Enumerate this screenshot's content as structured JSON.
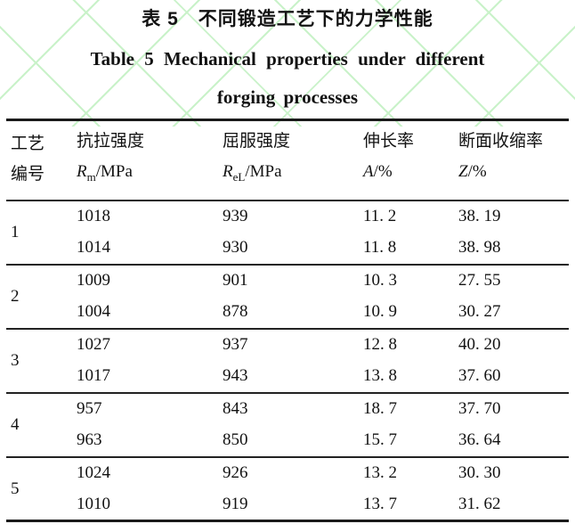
{
  "title": {
    "zh": "表 5　不同锻造工艺下的力学性能",
    "en_line1": "Table 5 Mechanical properties under different",
    "en_line2": "forging processes"
  },
  "table": {
    "columns": [
      {
        "zh1": "工艺",
        "zh2": "编号"
      },
      {
        "zh": "抗拉强度",
        "sym": "R",
        "sub": "m",
        "unit": "/MPa"
      },
      {
        "zh": "屈服强度",
        "sym": "R",
        "sub": "eL",
        "unit": "/MPa"
      },
      {
        "zh": "伸长率",
        "sym": "A",
        "sub": "",
        "unit": "/%"
      },
      {
        "zh": "断面收缩率",
        "sym": "Z",
        "sub": "",
        "unit": "/%"
      }
    ],
    "groups": [
      {
        "id": "1",
        "rows": [
          [
            "1018",
            "939",
            "11. 2",
            "38. 19"
          ],
          [
            "1014",
            "930",
            "11. 8",
            "38. 98"
          ]
        ]
      },
      {
        "id": "2",
        "rows": [
          [
            "1009",
            "901",
            "10. 3",
            "27. 55"
          ],
          [
            "1004",
            "878",
            "10. 9",
            "30. 27"
          ]
        ]
      },
      {
        "id": "3",
        "rows": [
          [
            "1027",
            "937",
            "12. 8",
            "40. 20"
          ],
          [
            "1017",
            "943",
            "13. 8",
            "37. 60"
          ]
        ]
      },
      {
        "id": "4",
        "rows": [
          [
            "957",
            "843",
            "18. 7",
            "37. 70"
          ],
          [
            "963",
            "850",
            "15. 7",
            "36. 64"
          ]
        ]
      },
      {
        "id": "5",
        "rows": [
          [
            "1024",
            "926",
            "13. 2",
            "30. 30"
          ],
          [
            "1010",
            "919",
            "13. 7",
            "31. 62"
          ]
        ]
      }
    ]
  },
  "chart_data": {
    "type": "table",
    "title": "表 5 不同锻造工艺下的力学性能 / Table 5 Mechanical properties under different forging processes",
    "columns": [
      "工艺编号",
      "抗拉强度 Rm/MPa",
      "屈服强度 ReL/MPa",
      "伸长率 A/%",
      "断面收缩率 Z/%"
    ],
    "rows": [
      [
        "1",
        1018,
        939,
        11.2,
        38.19
      ],
      [
        "1",
        1014,
        930,
        11.8,
        38.98
      ],
      [
        "2",
        1009,
        901,
        10.3,
        27.55
      ],
      [
        "2",
        1004,
        878,
        10.9,
        30.27
      ],
      [
        "3",
        1027,
        937,
        12.8,
        40.2
      ],
      [
        "3",
        1017,
        943,
        13.8,
        37.6
      ],
      [
        "4",
        957,
        843,
        18.7,
        37.7
      ],
      [
        "4",
        963,
        850,
        15.7,
        36.64
      ],
      [
        "5",
        1024,
        926,
        13.2,
        30.3
      ],
      [
        "5",
        1010,
        919,
        13.7,
        31.62
      ]
    ]
  },
  "colors": {
    "watermark_green": "#c9f2c9",
    "rule": "#1b1b1b",
    "text": "#121212",
    "background": "#ffffff"
  }
}
